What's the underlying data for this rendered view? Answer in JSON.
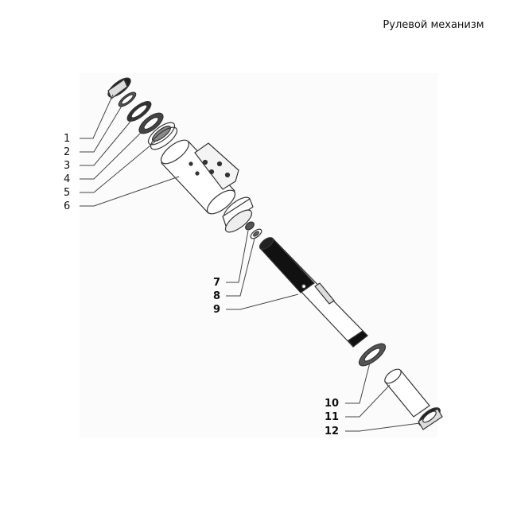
{
  "title": "Рулевой механизм",
  "callouts": [
    {
      "id": "1",
      "label": "1"
    },
    {
      "id": "2",
      "label": "2"
    },
    {
      "id": "3",
      "label": "3"
    },
    {
      "id": "4",
      "label": "4"
    },
    {
      "id": "5",
      "label": "5"
    },
    {
      "id": "6",
      "label": "6"
    },
    {
      "id": "7",
      "label": "7"
    },
    {
      "id": "8",
      "label": "8"
    },
    {
      "id": "9",
      "label": "9"
    },
    {
      "id": "10",
      "label": "10"
    },
    {
      "id": "11",
      "label": "11"
    },
    {
      "id": "12",
      "label": "12"
    }
  ],
  "colors": {
    "part_stroke": "#333333",
    "part_fill": "#ffffff",
    "dark_part": "#111111",
    "leader": "#444444"
  }
}
